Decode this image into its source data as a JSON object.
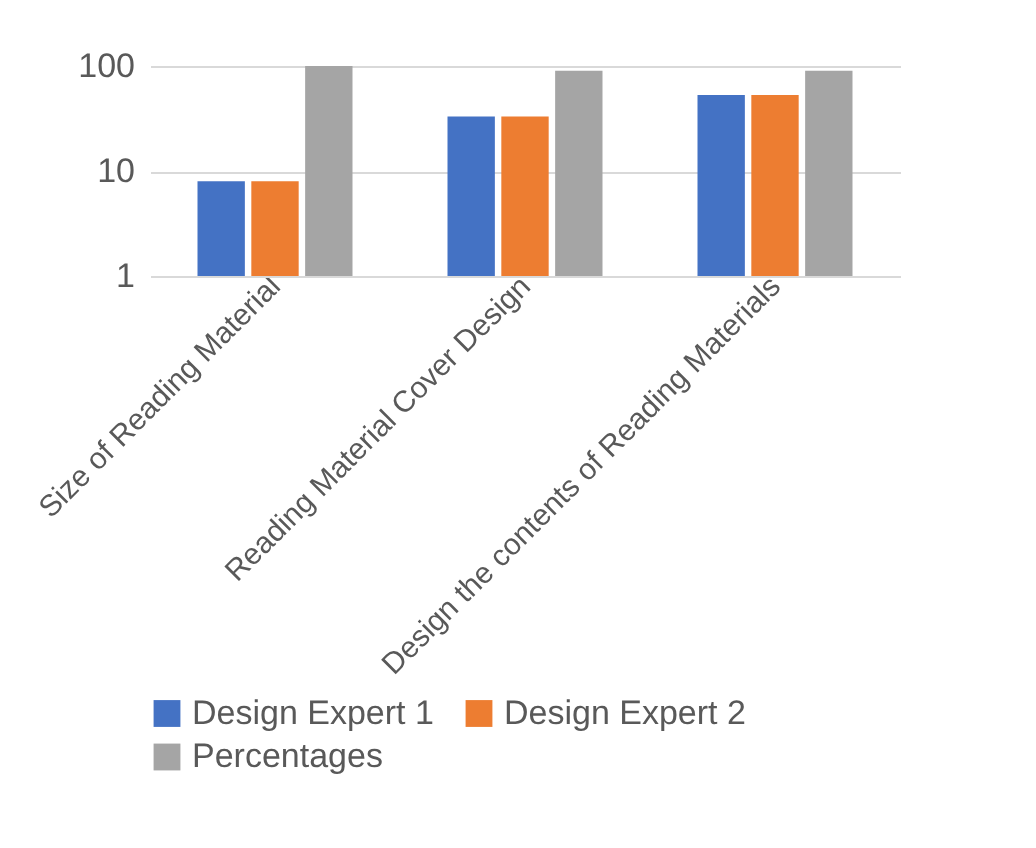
{
  "chart_data": {
    "type": "bar",
    "categories": [
      "Size of Reading Material",
      "Reading Material Cover Design",
      "Design the contents of Reading Materials"
    ],
    "series": [
      {
        "name": "Design Expert 1",
        "color": "#4472c4",
        "values": [
          8,
          33,
          53
        ]
      },
      {
        "name": "Design Expert 2",
        "color": "#ed7d31",
        "values": [
          8,
          33,
          53
        ]
      },
      {
        "name": "Percentages",
        "color": "#a5a5a5",
        "values": [
          100,
          90,
          90
        ]
      }
    ],
    "log": true,
    "ylim": [
      1,
      100
    ],
    "yticks": [
      1,
      10,
      100
    ],
    "grid": "y",
    "legend": "bottom"
  }
}
